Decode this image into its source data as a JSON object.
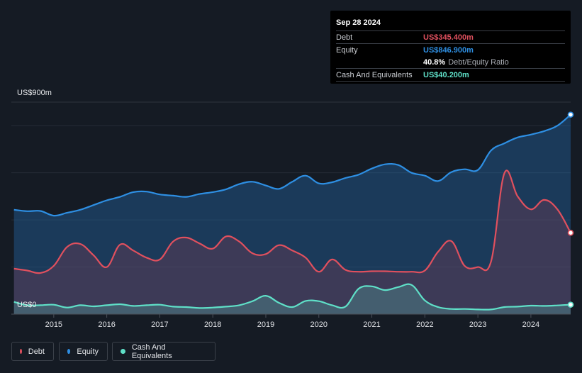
{
  "tooltip": {
    "date": "Sep 28 2024",
    "debt_label": "Debt",
    "debt_value": "US$345.400m",
    "equity_label": "Equity",
    "equity_value": "US$846.900m",
    "ratio_value": "40.8%",
    "ratio_label": "Debt/Equity Ratio",
    "cash_label": "Cash And Equivalents",
    "cash_value": "US$40.200m"
  },
  "legend": {
    "debt": "Debt",
    "equity": "Equity",
    "cash": "Cash And Equivalents"
  },
  "colors": {
    "debt": "#e0505e",
    "equity": "#2e8fe3",
    "cash": "#5fe0c8",
    "background": "#151b24"
  },
  "chart_data": {
    "type": "area",
    "y_top_label": "US$900m",
    "y_bottom_label": "US$0",
    "ylim": [
      0,
      900
    ],
    "xlim": [
      2014.2,
      2024.75
    ],
    "x_ticks": [
      "2015",
      "2016",
      "2017",
      "2018",
      "2019",
      "2020",
      "2021",
      "2022",
      "2023",
      "2024"
    ],
    "x_tick_values": [
      2015,
      2016,
      2017,
      2018,
      2019,
      2020,
      2021,
      2022,
      2023,
      2024
    ],
    "series": [
      {
        "name": "Equity",
        "x": [
          2014.25,
          2014.5,
          2014.75,
          2015.0,
          2015.25,
          2015.5,
          2015.75,
          2016.0,
          2016.25,
          2016.5,
          2016.75,
          2017.0,
          2017.25,
          2017.5,
          2017.75,
          2018.0,
          2018.25,
          2018.5,
          2018.75,
          2019.0,
          2019.25,
          2019.5,
          2019.75,
          2020.0,
          2020.25,
          2020.5,
          2020.75,
          2021.0,
          2021.25,
          2021.5,
          2021.75,
          2022.0,
          2022.25,
          2022.5,
          2022.75,
          2023.0,
          2023.25,
          2023.5,
          2023.75,
          2024.0,
          2024.25,
          2024.5,
          2024.75
        ],
        "values": [
          443,
          437,
          438,
          418,
          430,
          443,
          463,
          483,
          498,
          518,
          520,
          508,
          503,
          498,
          510,
          518,
          530,
          552,
          562,
          546,
          532,
          562,
          588,
          555,
          560,
          578,
          592,
          618,
          636,
          633,
          600,
          588,
          565,
          603,
          615,
          612,
          695,
          725,
          750,
          762,
          777,
          800,
          846.9
        ]
      },
      {
        "name": "Debt",
        "x": [
          2014.25,
          2014.5,
          2014.75,
          2015.0,
          2015.25,
          2015.5,
          2015.75,
          2016.0,
          2016.25,
          2016.5,
          2016.75,
          2017.0,
          2017.25,
          2017.5,
          2017.75,
          2018.0,
          2018.25,
          2018.5,
          2018.75,
          2019.0,
          2019.25,
          2019.5,
          2019.75,
          2020.0,
          2020.25,
          2020.5,
          2020.75,
          2021.0,
          2021.25,
          2021.5,
          2021.75,
          2022.0,
          2022.25,
          2022.5,
          2022.75,
          2023.0,
          2023.25,
          2023.5,
          2023.75,
          2024.0,
          2024.25,
          2024.5,
          2024.75
        ],
        "values": [
          193,
          185,
          175,
          205,
          285,
          298,
          250,
          200,
          295,
          270,
          240,
          232,
          308,
          325,
          300,
          278,
          330,
          308,
          258,
          255,
          293,
          270,
          240,
          180,
          232,
          188,
          180,
          182,
          182,
          180,
          180,
          185,
          265,
          310,
          205,
          200,
          225,
          598,
          500,
          445,
          485,
          445,
          345.4
        ]
      },
      {
        "name": "Cash And Equivalents",
        "x": [
          2014.25,
          2014.5,
          2014.75,
          2015.0,
          2015.25,
          2015.5,
          2015.75,
          2016.0,
          2016.25,
          2016.5,
          2016.75,
          2017.0,
          2017.25,
          2017.5,
          2017.75,
          2018.0,
          2018.25,
          2018.5,
          2018.75,
          2019.0,
          2019.25,
          2019.5,
          2019.75,
          2020.0,
          2020.25,
          2020.5,
          2020.75,
          2021.0,
          2021.25,
          2021.5,
          2021.75,
          2022.0,
          2022.25,
          2022.5,
          2022.75,
          2023.0,
          2023.25,
          2023.5,
          2023.75,
          2024.0,
          2024.25,
          2024.5,
          2024.75
        ],
        "values": [
          52,
          38,
          38,
          40,
          28,
          38,
          33,
          38,
          42,
          35,
          38,
          40,
          32,
          30,
          26,
          28,
          32,
          38,
          55,
          78,
          48,
          30,
          56,
          55,
          38,
          32,
          108,
          118,
          102,
          115,
          124,
          58,
          30,
          22,
          22,
          20,
          20,
          30,
          32,
          36,
          35,
          37,
          40.2
        ]
      }
    ]
  }
}
